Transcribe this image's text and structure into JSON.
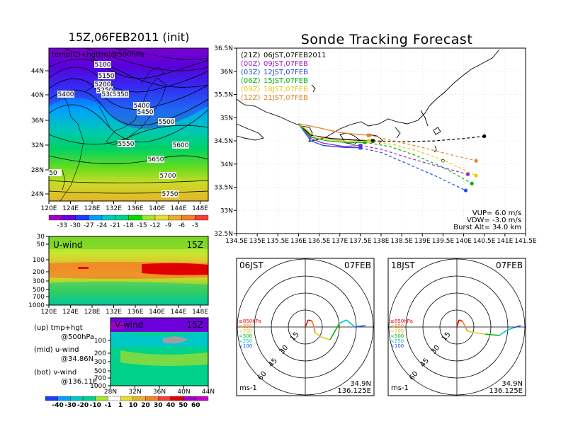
{
  "left_map": {
    "title": "15Z,06FEB2011 (init)",
    "var_label": "temp(C)+hgt(m)@500hPa",
    "lat_ticks": [
      "44N",
      "40N",
      "36N",
      "32N",
      "28N",
      "24N"
    ],
    "lon_ticks": [
      "120E",
      "124E",
      "128E",
      "132E",
      "136E",
      "140E",
      "144E",
      "148E"
    ],
    "contour_labels": [
      "5100",
      "5150",
      "5200",
      "5250",
      "5300",
      "5350",
      "5400",
      "5400",
      "5450",
      "5500",
      "5550",
      "5600",
      "5650",
      "5700",
      "5750",
      "50"
    ],
    "colorbar_labels": [
      "-33",
      "-30",
      "-27",
      "-24",
      "-21",
      "-18",
      "-15",
      "-12",
      "-9",
      "-6",
      "-3"
    ],
    "colorbar_colors": [
      "#a000c8",
      "#6e00dc",
      "#1e3cff",
      "#00a0ff",
      "#00c8c8",
      "#00d28c",
      "#00dc00",
      "#a0e632",
      "#e6dc32",
      "#e6af2d",
      "#f08228",
      "#fa3c3c"
    ]
  },
  "uwind_panel": {
    "label": "U-wind",
    "time": "15Z",
    "y_ticks": [
      "30",
      "50",
      "100",
      "200",
      "300",
      "500",
      "700",
      "1000"
    ],
    "x_ticks": [
      "120E",
      "124E",
      "128E",
      "132E",
      "136E",
      "140E",
      "144E",
      "148E"
    ]
  },
  "vwind_panel": {
    "label": "V-wind",
    "time": "15Z",
    "y_ticks": [
      "100",
      "200",
      "300",
      "500",
      "700",
      "1000"
    ],
    "x_ticks": [
      "28N",
      "32N",
      "36N",
      "40N",
      "44N"
    ]
  },
  "legend_text": [
    {
      "a": "(up) tmp+hgt",
      "b": "@500hPa"
    },
    {
      "a": "(mid) u-wind",
      "b": "@34.86N"
    },
    {
      "a": "(bot) v-wind",
      "b": "@136.11E"
    }
  ],
  "bottom_colorbar": {
    "labels": [
      "-40",
      "-30",
      "-20",
      "-10",
      "-1",
      "1",
      "10",
      "20",
      "30",
      "40",
      "50",
      "60"
    ],
    "colors": [
      "#1e3cff",
      "#00a0ff",
      "#00c8c8",
      "#00d28c",
      "#a0e632",
      "#ffffff",
      "#e6dc32",
      "#e6af2d",
      "#f08228",
      "#fa3c3c",
      "#e10000",
      "#a000c8",
      "#c800c8"
    ]
  },
  "forecast": {
    "title": "Sonde Tracking Forecast",
    "lat_ticks": [
      "36.5N",
      "36N",
      "35.5N",
      "35N",
      "34.5N",
      "34N",
      "33.5N",
      "33N",
      "32.5N"
    ],
    "lon_ticks": [
      "134.5E",
      "135E",
      "135.5E",
      "136E",
      "136.5E",
      "137E",
      "137.5E",
      "138E",
      "138.5E",
      "139E",
      "139.5E",
      "140E",
      "140.5E",
      "141E",
      "141.5E"
    ],
    "params": [
      "VUP=  6.0  m/s",
      "VDW= -3.0  m/s",
      "Burst Alt=  34.0  km"
    ],
    "launches": [
      {
        "code": "(21Z)",
        "text": "06JST,07FEB2011",
        "color": "#000000"
      },
      {
        "code": "(00Z)",
        "text": "09JST,07FEB",
        "color": "#a020c8"
      },
      {
        "code": "(03Z)",
        "text": "12JST,07FEB",
        "color": "#1e4be6"
      },
      {
        "code": "(06Z)",
        "text": "15JST,07FEB",
        "color": "#00b400"
      },
      {
        "code": "(09Z)",
        "text": "18JST,07FEB",
        "color": "#e6c81e"
      },
      {
        "code": "(12Z)",
        "text": "21JST,07FEB",
        "color": "#e68228"
      }
    ]
  },
  "hodographs": [
    {
      "time": "06JST",
      "date": "07FEB",
      "lat": "34.9N",
      "lon": "136.125E",
      "unit": "ms-1"
    },
    {
      "time": "18JST",
      "date": "07FEB",
      "lat": "34.9N",
      "lon": "136.125E",
      "unit": "ms-1"
    }
  ],
  "hodo_legend": [
    "≥850hPa",
    "<850",
    "<700",
    "<500",
    "<250",
    "<100"
  ],
  "hodo_legend_colors": [
    "#e60000",
    "#f08228",
    "#e6c81e",
    "#00b400",
    "#00c8c8",
    "#1e4be6"
  ],
  "hodo_ring_labels": [
    "15",
    "30",
    "45",
    "60"
  ],
  "chart_data": {
    "type": "line",
    "title": "Sonde Tracking Forecast",
    "xlim": [
      134.5,
      141.5
    ],
    "ylim": [
      32.5,
      36.5
    ],
    "launch_point": {
      "lon": 136.0,
      "lat": 34.87
    },
    "series": [
      {
        "name": "(21Z) 06JST,07FEB2011",
        "color": "#000000",
        "lon": [
          136.0,
          136.3,
          136.8,
          137.3,
          137.8,
          138.5,
          139.3,
          140.0,
          140.5
        ],
        "lat": [
          34.87,
          34.62,
          34.55,
          34.52,
          34.5,
          34.48,
          34.5,
          34.55,
          34.6
        ]
      },
      {
        "name": "(00Z) 09JST,07FEB",
        "color": "#a020c8",
        "lon": [
          136.0,
          136.3,
          136.6,
          137.1,
          137.5,
          138.0,
          138.6,
          139.3,
          140.1
        ],
        "lat": [
          34.87,
          34.55,
          34.45,
          34.38,
          34.4,
          34.32,
          34.15,
          33.97,
          33.78
        ]
      },
      {
        "name": "(03Z) 12JST,07FEB",
        "color": "#1e4be6",
        "lon": [
          136.0,
          136.3,
          136.6,
          137.1,
          137.5,
          138.0,
          138.6,
          139.3,
          140.05
        ],
        "lat": [
          34.87,
          34.5,
          34.4,
          34.36,
          34.35,
          34.25,
          34.02,
          33.75,
          33.43
        ]
      },
      {
        "name": "(06Z) 15JST,07FEB",
        "color": "#00b400",
        "lon": [
          136.0,
          136.3,
          136.7,
          137.2,
          137.6,
          138.2,
          138.8,
          139.5,
          140.2
        ],
        "lat": [
          34.87,
          34.58,
          34.5,
          34.46,
          34.47,
          34.38,
          34.2,
          33.93,
          33.58
        ]
      },
      {
        "name": "(09Z) 18JST,07FEB",
        "color": "#e6c81e",
        "lon": [
          136.0,
          136.4,
          136.8,
          137.3,
          137.7,
          138.3,
          138.9,
          139.6,
          140.3
        ],
        "lat": [
          34.87,
          34.6,
          34.52,
          34.48,
          34.5,
          34.42,
          34.28,
          34.05,
          33.75
        ]
      },
      {
        "name": "(12Z) 21JST,07FEB",
        "color": "#e68228",
        "lon": [
          136.0,
          136.5,
          137.0,
          137.3,
          137.7,
          138.3,
          138.9,
          139.6,
          140.3
        ],
        "lat": [
          34.87,
          34.78,
          34.68,
          34.65,
          34.62,
          34.5,
          34.38,
          34.22,
          34.07
        ]
      }
    ]
  }
}
